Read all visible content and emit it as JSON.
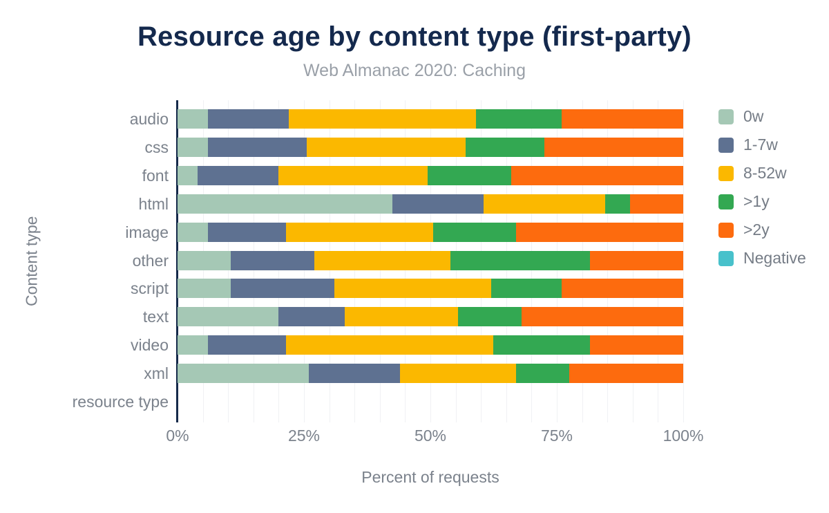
{
  "chart_data": {
    "type": "bar",
    "orientation": "horizontal",
    "stacked": true,
    "title": "Resource age by content type (first-party)",
    "subtitle": "Web Almanac 2020: Caching",
    "xlabel": "Percent of requests",
    "ylabel": "Content type",
    "xlim": [
      0,
      100
    ],
    "x_ticks": [
      {
        "label": "0%",
        "value": 0
      },
      {
        "label": "25%",
        "value": 25
      },
      {
        "label": "50%",
        "value": 50
      },
      {
        "label": "75%",
        "value": 75
      },
      {
        "label": "100%",
        "value": 100
      }
    ],
    "grid": {
      "show": true,
      "interval_percent": 5
    },
    "legend_position": "right",
    "categories": [
      "audio",
      "css",
      "font",
      "html",
      "image",
      "other",
      "script",
      "text",
      "video",
      "xml",
      "resource type"
    ],
    "series": [
      {
        "name": "0w",
        "color": "#a5c8b5",
        "values": [
          6,
          6,
          4,
          42.5,
          6,
          10.5,
          10.5,
          20,
          6,
          26,
          0
        ]
      },
      {
        "name": "1-7w",
        "color": "#5e7191",
        "values": [
          16,
          19.5,
          16,
          18,
          15.5,
          16.5,
          20.5,
          13,
          15.5,
          18,
          0
        ]
      },
      {
        "name": "8-52w",
        "color": "#fbb800",
        "values": [
          37,
          31.5,
          29.5,
          24,
          29,
          27,
          31,
          22.5,
          41,
          23,
          0
        ]
      },
      {
        "name": ">1y",
        "color": "#33a852",
        "values": [
          17,
          15.5,
          16.5,
          5,
          16.5,
          27.5,
          14,
          12.5,
          19,
          10.5,
          0
        ]
      },
      {
        "name": ">2y",
        "color": "#fd6b0e",
        "values": [
          24,
          27.5,
          34,
          10.5,
          33,
          18.5,
          24,
          32,
          18.5,
          22.5,
          0
        ]
      },
      {
        "name": "Negative",
        "color": "#48c1cb",
        "values": [
          0,
          0,
          0,
          0,
          0,
          0,
          0,
          0,
          0,
          0,
          0
        ]
      }
    ],
    "colors": {
      "title_text": "#14294d",
      "subtitle_text": "#9aa0a8",
      "axis_line": "#152a4a",
      "label_text": "#7b828c",
      "legend_text": "#757c86",
      "gridline": "#f0f1f4",
      "background": "#ffffff"
    }
  }
}
